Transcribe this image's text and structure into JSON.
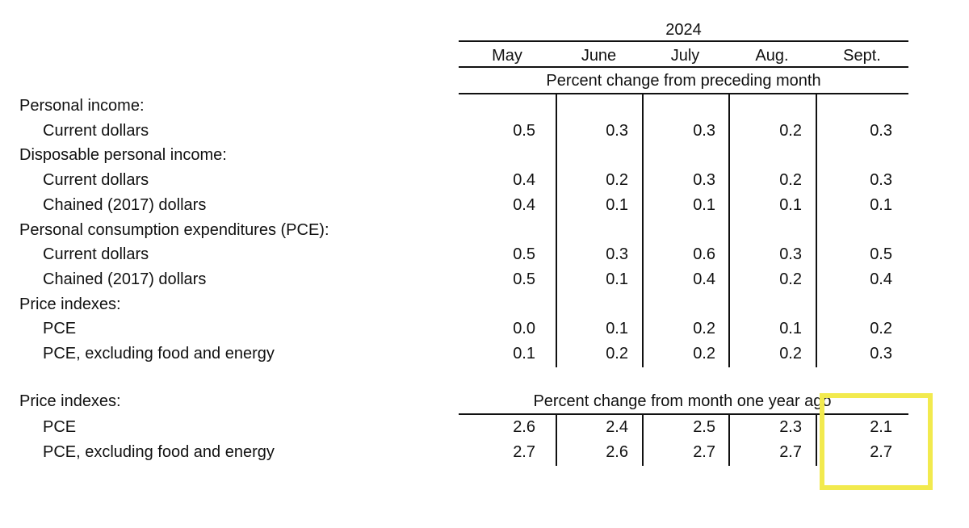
{
  "header": {
    "year": "2024",
    "months": [
      "May",
      "June",
      "July",
      "Aug.",
      "Sept."
    ]
  },
  "sections": [
    {
      "caption": "Percent change from preceding month",
      "rows": [
        {
          "label": "Personal income:",
          "indent": false
        },
        {
          "label": "Current dollars",
          "indent": true,
          "values": [
            "0.5",
            "0.3",
            "0.3",
            "0.2",
            "0.3"
          ]
        },
        {
          "label": "Disposable personal income:",
          "indent": false
        },
        {
          "label": "Current dollars",
          "indent": true,
          "values": [
            "0.4",
            "0.2",
            "0.3",
            "0.2",
            "0.3"
          ]
        },
        {
          "label": "Chained (2017) dollars",
          "indent": true,
          "values": [
            "0.4",
            "0.1",
            "0.1",
            "0.1",
            "0.1"
          ]
        },
        {
          "label": "Personal consumption expenditures (PCE):",
          "indent": false
        },
        {
          "label": "Current dollars",
          "indent": true,
          "values": [
            "0.5",
            "0.3",
            "0.6",
            "0.3",
            "0.5"
          ]
        },
        {
          "label": "Chained (2017) dollars",
          "indent": true,
          "values": [
            "0.5",
            "0.1",
            "0.4",
            "0.2",
            "0.4"
          ]
        },
        {
          "label": "Price indexes:",
          "indent": false
        },
        {
          "label": "PCE",
          "indent": true,
          "values": [
            "0.0",
            "0.1",
            "0.2",
            "0.1",
            "0.2"
          ]
        },
        {
          "label": "PCE, excluding food and energy",
          "indent": true,
          "values": [
            "0.1",
            "0.2",
            "0.2",
            "0.2",
            "0.3"
          ]
        }
      ]
    },
    {
      "caption": "Percent change from month one year ago",
      "heading": "Price indexes:",
      "rows": [
        {
          "label": "PCE",
          "indent": true,
          "values": [
            "2.6",
            "2.4",
            "2.5",
            "2.3",
            "2.1"
          ]
        },
        {
          "label": "PCE, excluding food and energy",
          "indent": true,
          "values": [
            "2.7",
            "2.6",
            "2.7",
            "2.7",
            "2.7"
          ]
        }
      ]
    }
  ]
}
